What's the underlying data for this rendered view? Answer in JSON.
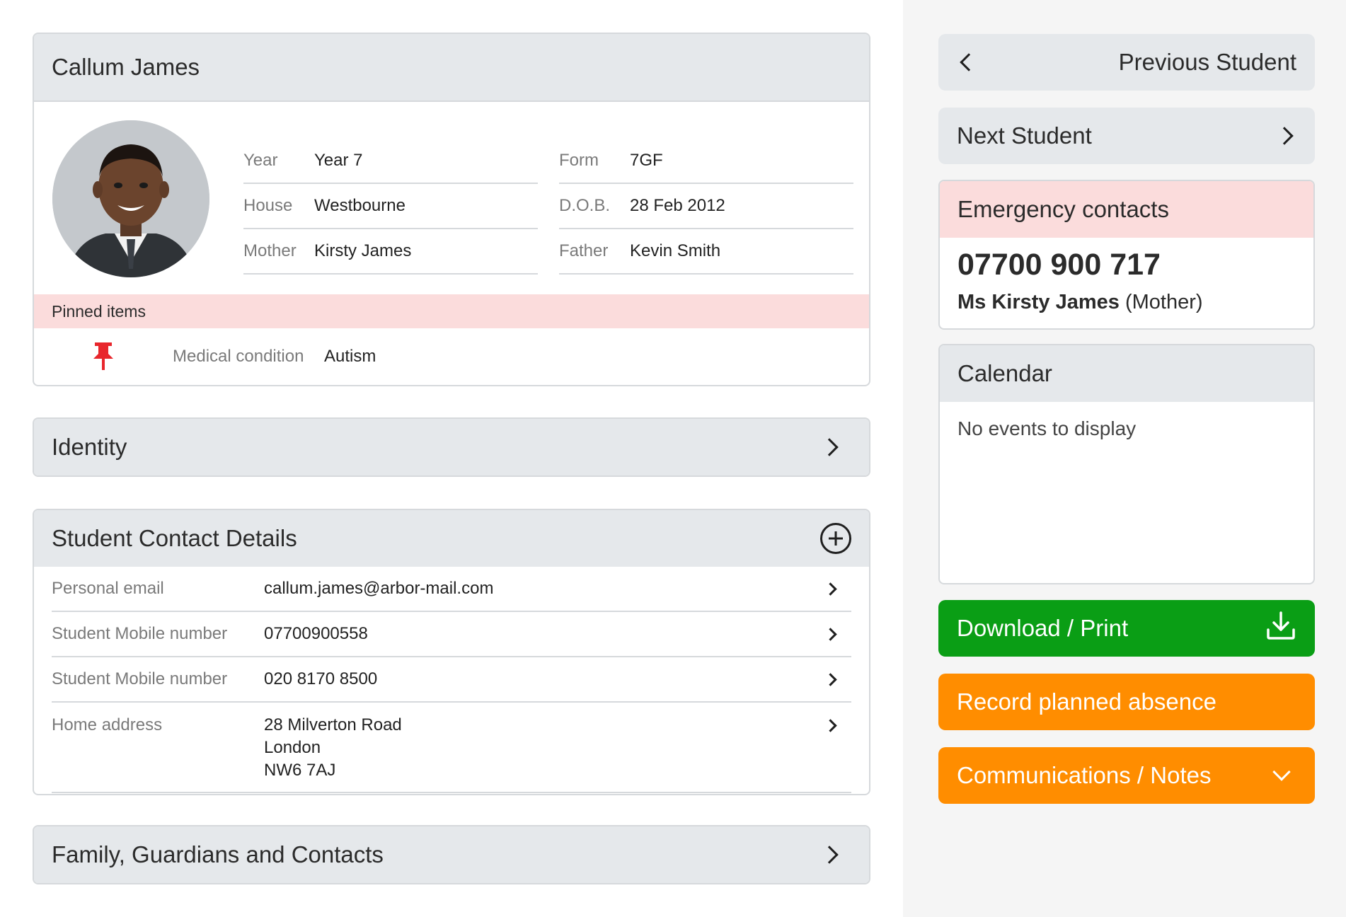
{
  "student": {
    "name": "Callum James",
    "fields_left": [
      {
        "label": "Year",
        "value": "Year 7"
      },
      {
        "label": "House",
        "value": "Westbourne"
      },
      {
        "label": "Mother",
        "value": "Kirsty James"
      }
    ],
    "fields_right": [
      {
        "label": "Form",
        "value": "7GF"
      },
      {
        "label": "D.O.B.",
        "value": "28 Feb 2012"
      },
      {
        "label": "Father",
        "value": "Kevin Smith"
      }
    ]
  },
  "pinned": {
    "title": "Pinned items",
    "items": [
      {
        "label": "Medical condition",
        "value": "Autism",
        "icon": "pushpin-icon"
      }
    ]
  },
  "identity": {
    "title": "Identity"
  },
  "contact_details": {
    "title": "Student Contact Details",
    "rows": [
      {
        "label": "Personal email",
        "value": "callum.james@arbor-mail.com"
      },
      {
        "label": "Student Mobile number",
        "value": "07700900558"
      },
      {
        "label": "Student Mobile number",
        "value": "020 8170 8500"
      },
      {
        "label": "Home address",
        "lines": [
          "28 Milverton Road",
          "London",
          "NW6 7AJ"
        ]
      }
    ]
  },
  "family": {
    "title": "Family, Guardians and Contacts"
  },
  "nav": {
    "previous": "Previous Student",
    "next": "Next Student"
  },
  "emergency": {
    "title": "Emergency contacts",
    "phone": "07700 900 717",
    "name": "Ms Kirsty James",
    "relation": "(Mother)"
  },
  "calendar": {
    "title": "Calendar",
    "empty": "No events to display"
  },
  "actions": {
    "download": "Download / Print",
    "absence": "Record planned absence",
    "communications": "Communications / Notes"
  },
  "colors": {
    "green": "#0a9e15",
    "orange": "#ff8d00",
    "pink": "#fbdcdc",
    "header_grey": "#e5e8eb",
    "pin_red": "#e8262c"
  }
}
